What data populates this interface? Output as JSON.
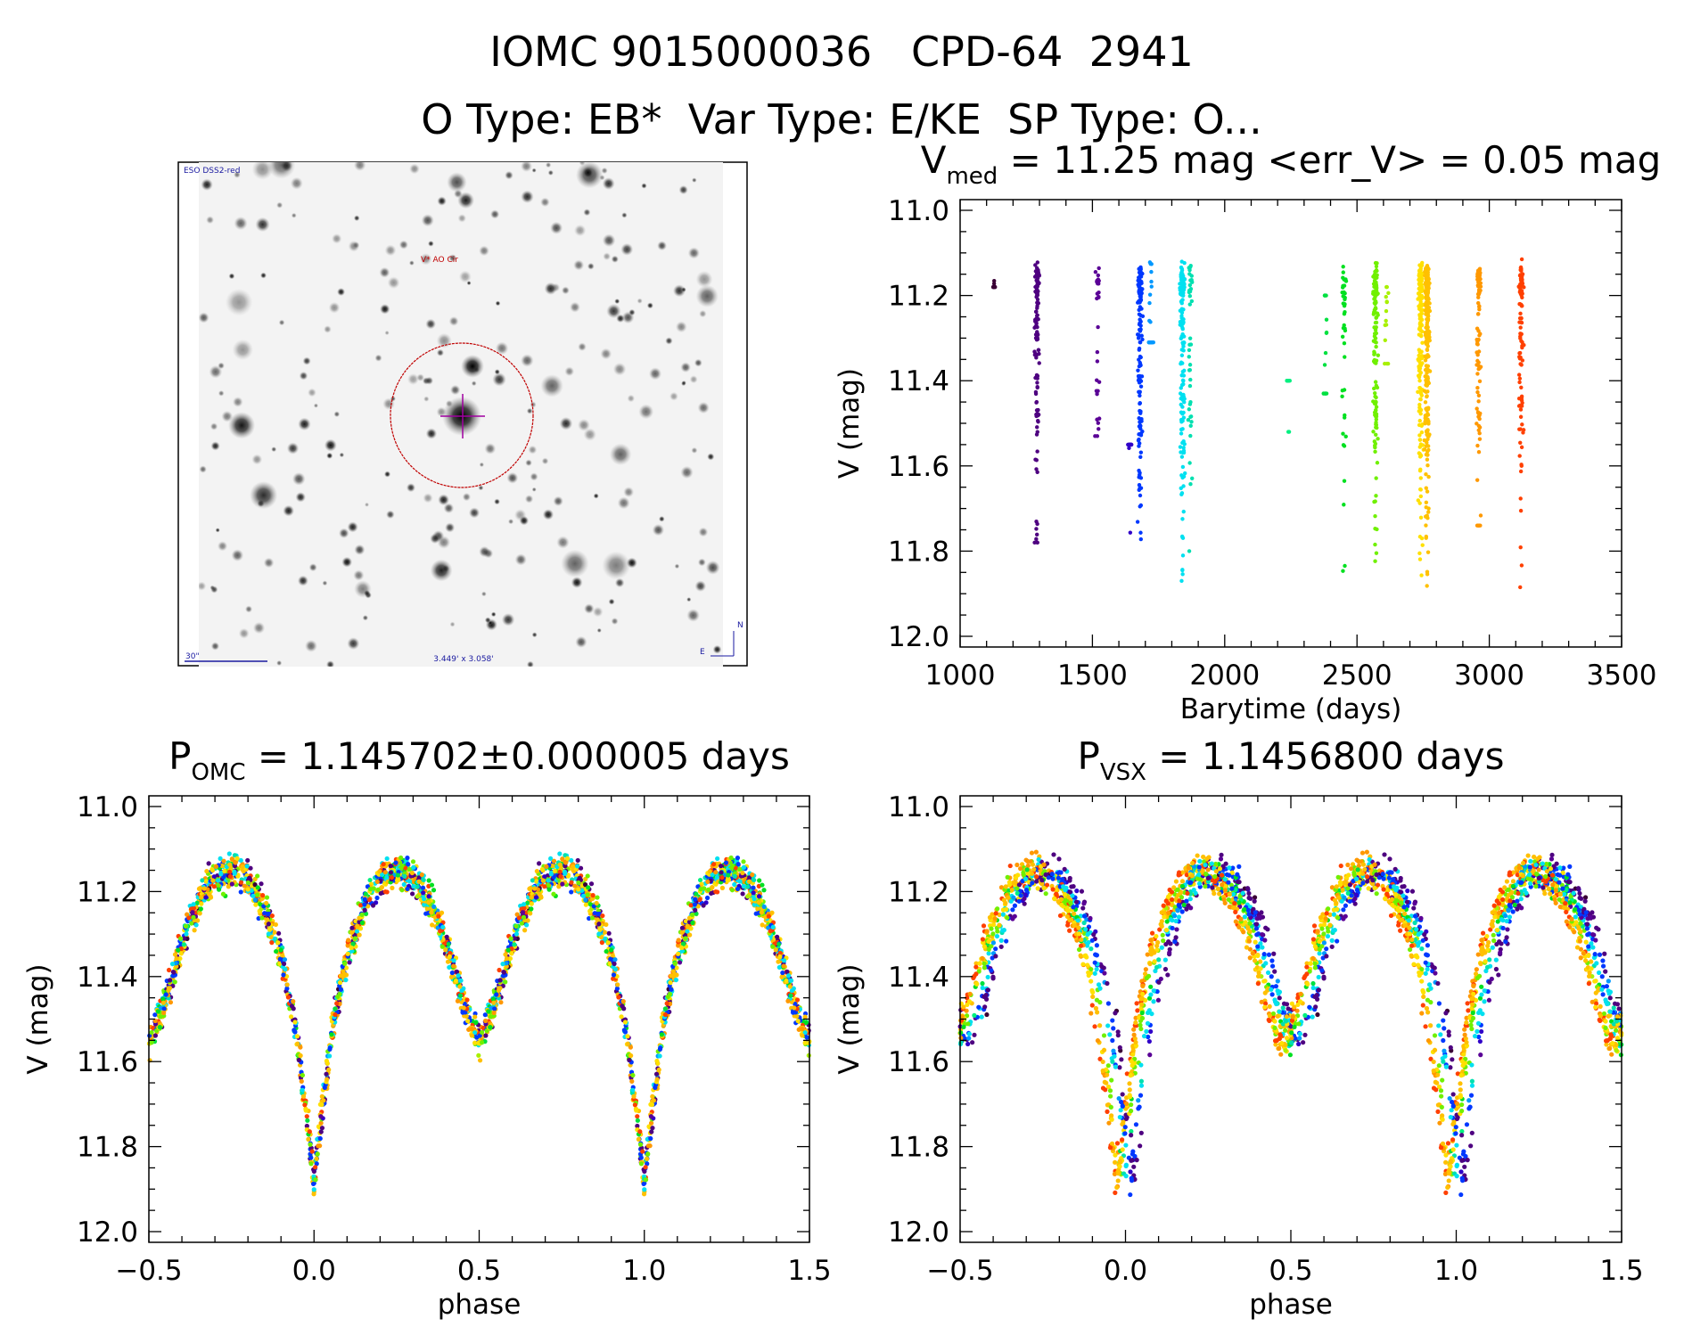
{
  "header": {
    "title": "IOMC 9015000036   CPD-64  2941",
    "subtitle": "O Type: EB*  Var Type: E/KE  SP Type: O..."
  },
  "finder": {
    "survey_label": "ESO DSS2-red",
    "target_label": "V* AO Cir",
    "scale_label": "30\"",
    "fov_label": "3.449' x 3.058'",
    "north_label": "N",
    "east_label": "E",
    "colors": {
      "circle": "#c00000",
      "crosshair": "#a000a0",
      "labels": "#1a1aa0"
    }
  },
  "chart_data": [
    {
      "type": "scatter",
      "title_main": "V",
      "title_sub": "med",
      "title_rest": " = 11.25 mag <err_V> = 0.05 mag",
      "xlabel": "Barytime (days)",
      "ylabel": "V (mag)",
      "xlim": [
        1000,
        3500
      ],
      "ylim": [
        12.0,
        11.0
      ],
      "y_inverted": true,
      "xticks": [
        "1000",
        "1500",
        "2000",
        "2500",
        "3000",
        "3500"
      ],
      "yticks": [
        "11.0",
        "11.2",
        "11.4",
        "11.6",
        "11.8",
        "12.0"
      ],
      "seasons": [
        {
          "t": 1130,
          "vmin": 11.13,
          "vmax": 11.18,
          "n": 10,
          "color": "#3a0035"
        },
        {
          "t": 1290,
          "vmin": 11.11,
          "vmax": 11.78,
          "n": 110,
          "color": "#4e0080"
        },
        {
          "t": 1520,
          "vmin": 11.11,
          "vmax": 11.53,
          "n": 30,
          "color": "#5a0096"
        },
        {
          "t": 1640,
          "vmin": 11.55,
          "vmax": 11.82,
          "n": 14,
          "color": "#3000c8"
        },
        {
          "t": 1680,
          "vmin": 11.04,
          "vmax": 11.87,
          "n": 140,
          "color": "#0038ff"
        },
        {
          "t": 1720,
          "vmin": 11.08,
          "vmax": 11.31,
          "n": 25,
          "color": "#0098ff"
        },
        {
          "t": 1840,
          "vmin": 11.1,
          "vmax": 11.87,
          "n": 160,
          "color": "#00e0f0"
        },
        {
          "t": 1870,
          "vmin": 11.13,
          "vmax": 11.8,
          "n": 40,
          "color": "#00e0b0"
        },
        {
          "t": 2240,
          "vmin": 11.4,
          "vmax": 11.52,
          "n": 10,
          "color": "#00f080"
        },
        {
          "t": 2380,
          "vmin": 11.2,
          "vmax": 11.43,
          "n": 16,
          "color": "#00e040"
        },
        {
          "t": 2450,
          "vmin": 11.11,
          "vmax": 11.91,
          "n": 40,
          "color": "#00e020"
        },
        {
          "t": 2570,
          "vmin": 11.07,
          "vmax": 11.85,
          "n": 130,
          "color": "#70f000"
        },
        {
          "t": 2610,
          "vmin": 11.18,
          "vmax": 11.36,
          "n": 14,
          "color": "#a8f000"
        },
        {
          "t": 2740,
          "vmin": 11.05,
          "vmax": 11.9,
          "n": 160,
          "color": "#ffe000"
        },
        {
          "t": 2765,
          "vmin": 11.05,
          "vmax": 11.92,
          "n": 260,
          "color": "#ffc000"
        },
        {
          "t": 2960,
          "vmin": 11.08,
          "vmax": 11.74,
          "n": 90,
          "color": "#ff9800"
        },
        {
          "t": 3120,
          "vmin": 11.1,
          "vmax": 11.95,
          "n": 110,
          "color": "#ff4000"
        }
      ]
    },
    {
      "type": "scatter",
      "title_main": "P",
      "title_sub": "OMC",
      "title_rest": " = 1.145702±0.000005 days",
      "xlabel": "phase",
      "ylabel": "V (mag)",
      "xlim": [
        -0.5,
        1.5
      ],
      "ylim": [
        12.0,
        11.0
      ],
      "y_inverted": true,
      "xticks": [
        "−0.5",
        "0.0",
        "0.5",
        "1.0",
        "1.5"
      ],
      "yticks": [
        "11.0",
        "11.2",
        "11.4",
        "11.6",
        "11.8",
        "12.0"
      ],
      "light_curve": [
        [
          0.0,
          11.88
        ],
        [
          0.03,
          11.68
        ],
        [
          0.06,
          11.5
        ],
        [
          0.1,
          11.35
        ],
        [
          0.15,
          11.24
        ],
        [
          0.2,
          11.17
        ],
        [
          0.25,
          11.15
        ],
        [
          0.3,
          11.17
        ],
        [
          0.35,
          11.22
        ],
        [
          0.4,
          11.32
        ],
        [
          0.45,
          11.46
        ],
        [
          0.5,
          11.56
        ],
        [
          0.55,
          11.46
        ],
        [
          0.6,
          11.32
        ],
        [
          0.65,
          11.22
        ],
        [
          0.7,
          11.17
        ],
        [
          0.75,
          11.15
        ],
        [
          0.8,
          11.17
        ],
        [
          0.85,
          11.24
        ],
        [
          0.9,
          11.35
        ],
        [
          0.94,
          11.5
        ],
        [
          0.97,
          11.68
        ],
        [
          1.0,
          11.88
        ]
      ]
    },
    {
      "type": "scatter",
      "title_main": "P",
      "title_sub": "VSX",
      "title_rest": " = 1.1456800 days",
      "xlabel": "phase",
      "ylabel": "V (mag)",
      "xlim": [
        -0.5,
        1.5
      ],
      "ylim": [
        12.0,
        11.0
      ],
      "y_inverted": true,
      "xticks": [
        "−0.5",
        "0.0",
        "0.5",
        "1.0",
        "1.5"
      ],
      "yticks": [
        "11.0",
        "11.2",
        "11.4",
        "11.6",
        "11.8",
        "12.0"
      ],
      "light_curve": [
        [
          0.0,
          11.88
        ],
        [
          0.03,
          11.68
        ],
        [
          0.06,
          11.5
        ],
        [
          0.1,
          11.35
        ],
        [
          0.15,
          11.24
        ],
        [
          0.2,
          11.17
        ],
        [
          0.25,
          11.15
        ],
        [
          0.3,
          11.17
        ],
        [
          0.35,
          11.22
        ],
        [
          0.4,
          11.32
        ],
        [
          0.45,
          11.46
        ],
        [
          0.5,
          11.56
        ],
        [
          0.55,
          11.46
        ],
        [
          0.6,
          11.32
        ],
        [
          0.65,
          11.22
        ],
        [
          0.7,
          11.17
        ],
        [
          0.75,
          11.15
        ],
        [
          0.8,
          11.17
        ],
        [
          0.85,
          11.24
        ],
        [
          0.9,
          11.35
        ],
        [
          0.94,
          11.5
        ],
        [
          0.97,
          11.68
        ],
        [
          1.0,
          11.88
        ]
      ]
    }
  ]
}
